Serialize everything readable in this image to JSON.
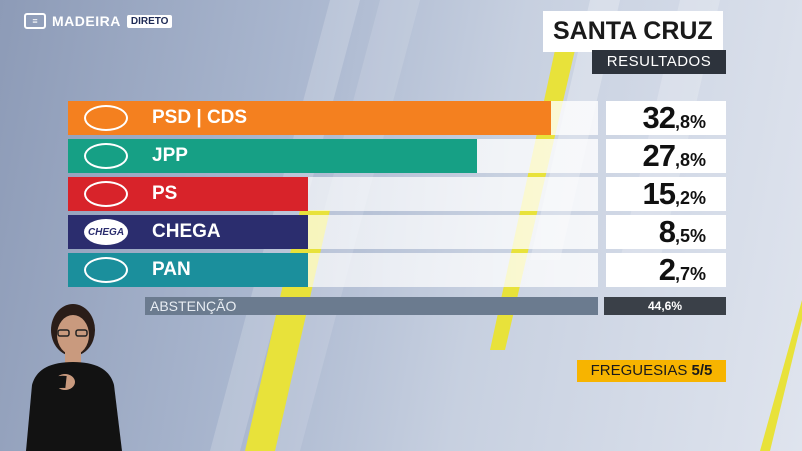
{
  "broadcast": {
    "channel": "MADEIRA",
    "tag": "DIRETO"
  },
  "header": {
    "title": "SANTA CRUZ",
    "subtitle": "RESULTADOS"
  },
  "chart_data": {
    "type": "bar",
    "orientation": "horizontal",
    "categories": [
      "PSD | CDS",
      "JPP",
      "PS",
      "CHEGA",
      "PAN"
    ],
    "values": [
      32.8,
      27.8,
      15.2,
      8.5,
      2.7
    ],
    "value_labels": [
      {
        "int": "32",
        "dec": ",8%"
      },
      {
        "int": "27",
        "dec": ",8%"
      },
      {
        "int": "15",
        "dec": ",2%"
      },
      {
        "int": "8",
        "dec": ",5%"
      },
      {
        "int": "2",
        "dec": ",7%"
      }
    ],
    "colors": [
      "#f4801f",
      "#16a085",
      "#d8232a",
      "#2b2d6e",
      "#1b8f9c"
    ],
    "logo_texts": [
      "",
      "",
      "",
      "CHEGA",
      ""
    ],
    "abstention": {
      "label": "ABSTENÇÃO",
      "value": "44,6%"
    }
  },
  "footer": {
    "label": "FREGUESIAS",
    "count": "5/5"
  }
}
